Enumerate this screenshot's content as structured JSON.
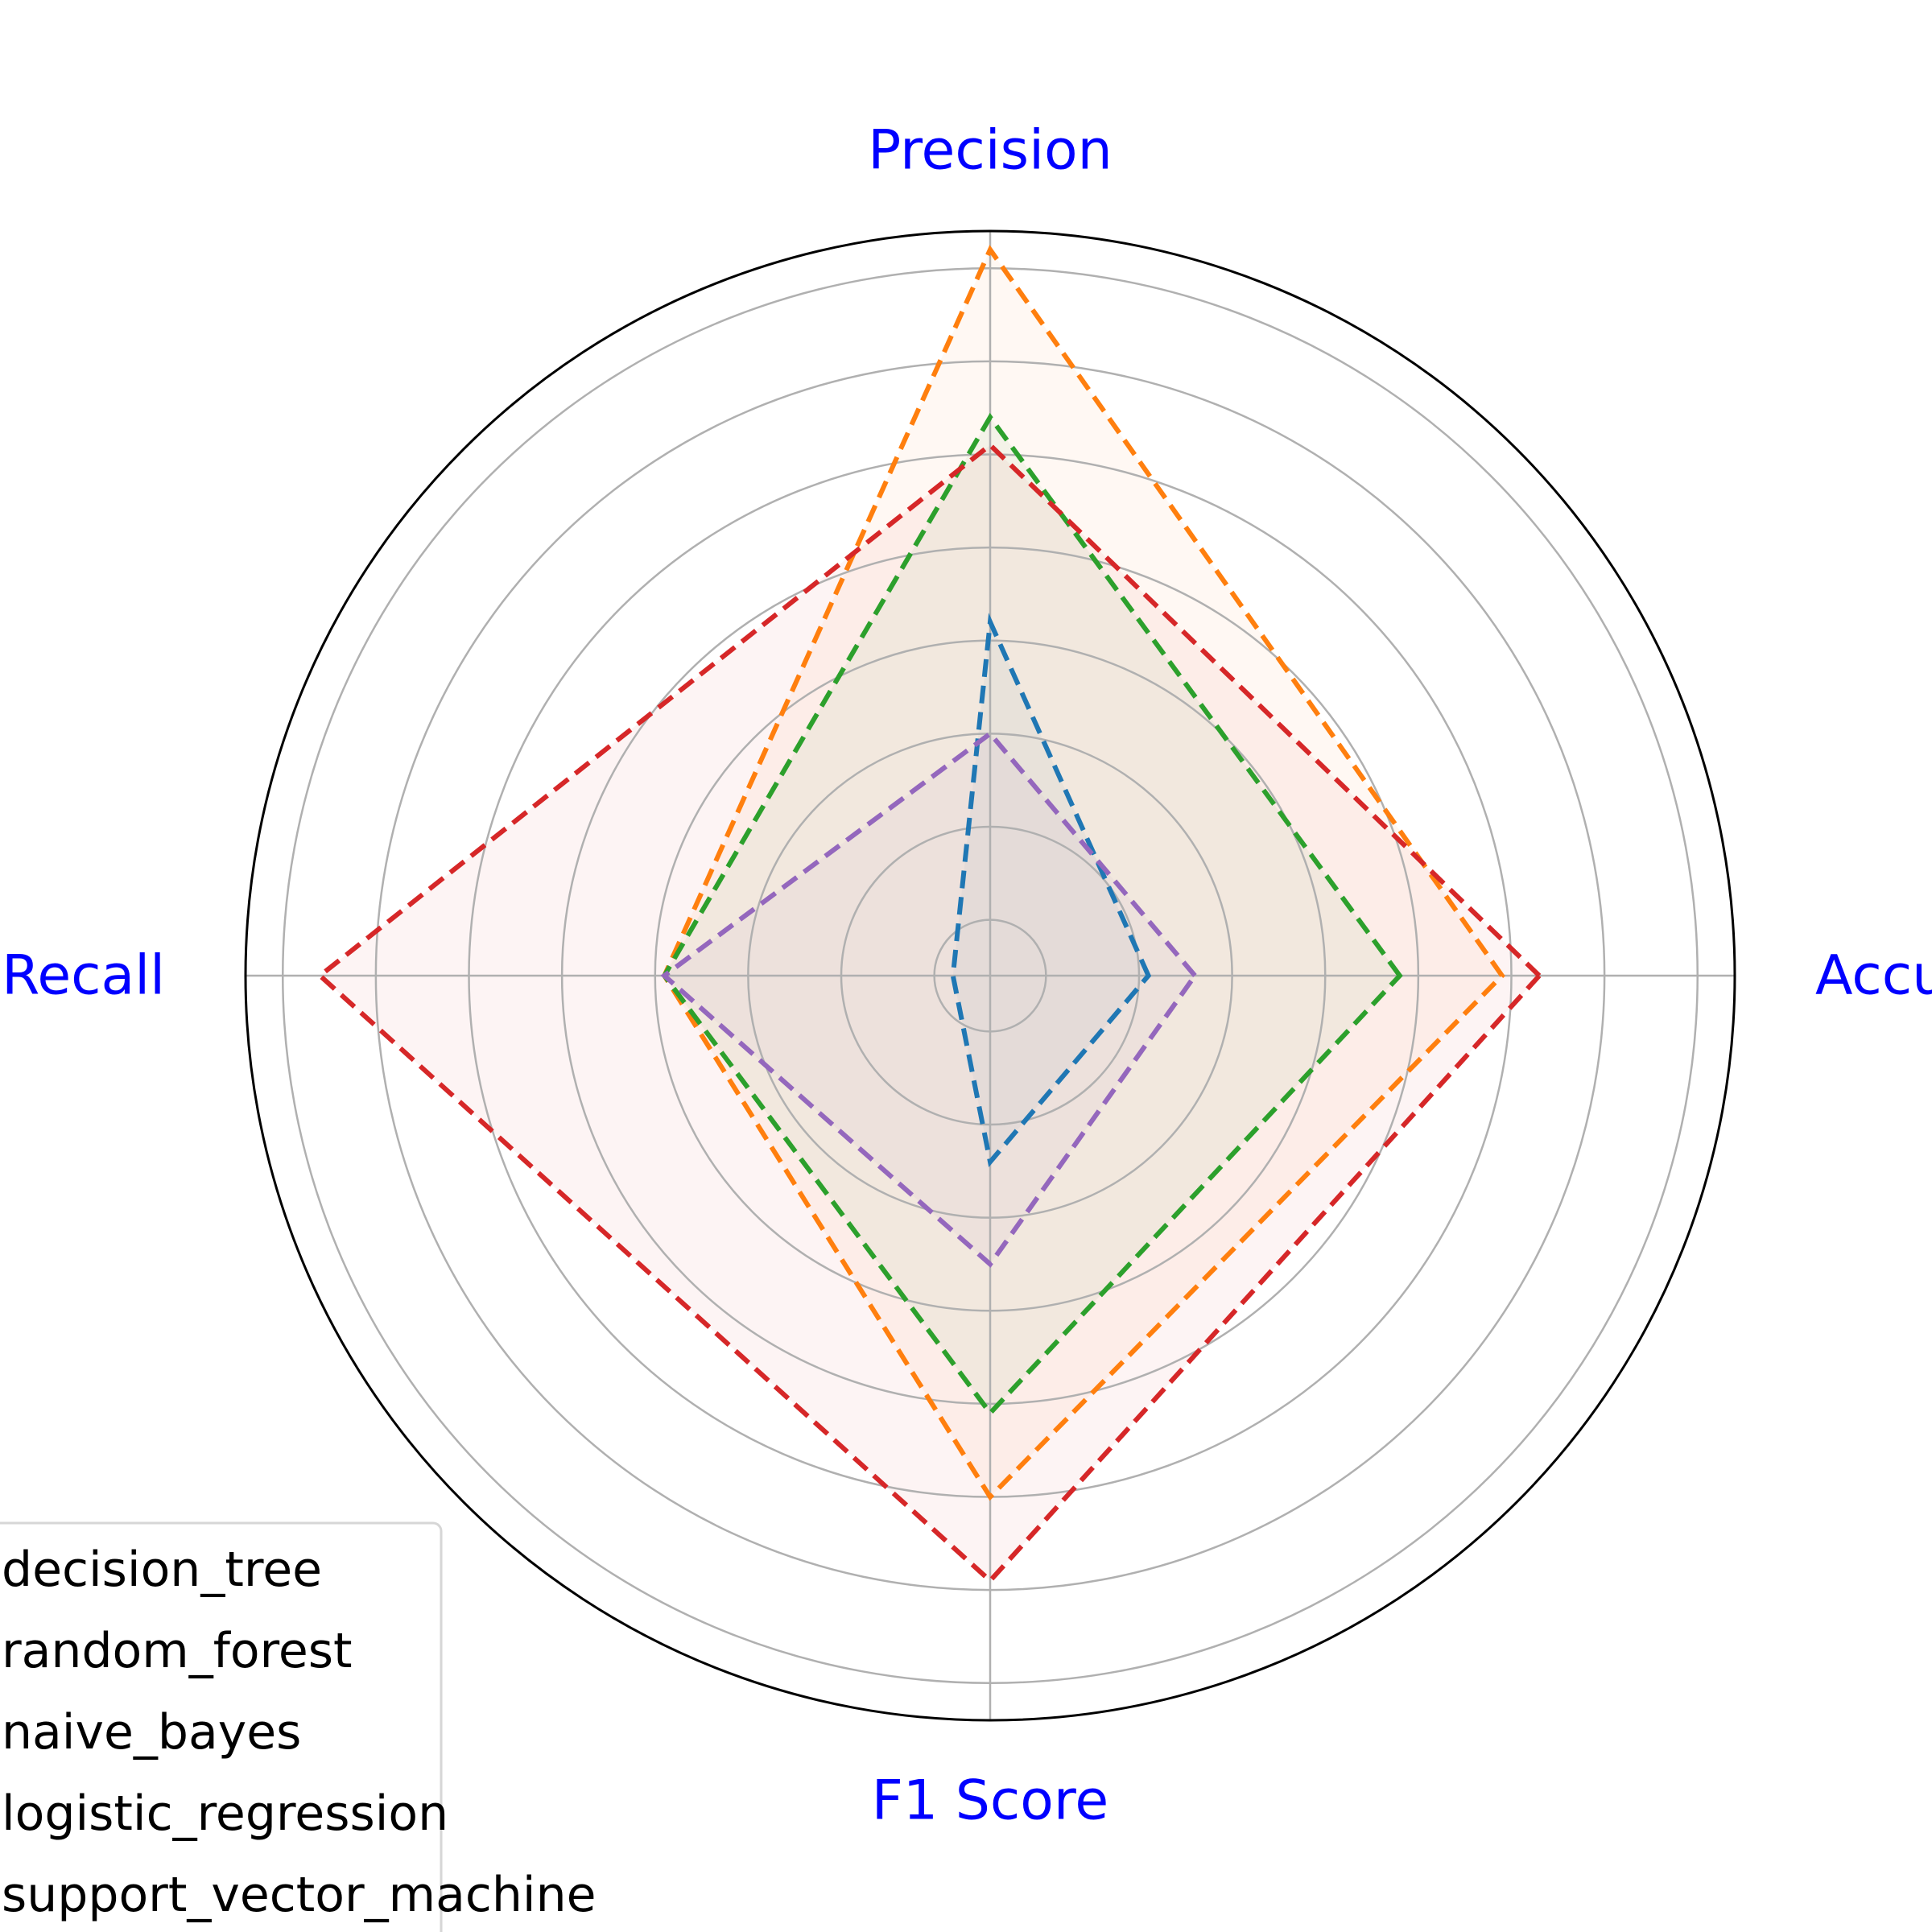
{
  "chart_data": {
    "type": "radar",
    "axes": [
      "Accuracy",
      "Precision",
      "Recall",
      "F1 Score"
    ],
    "rlim": [
      0,
      0.8
    ],
    "rings": [
      0.06,
      0.16,
      0.26,
      0.36,
      0.46,
      0.56,
      0.66,
      0.76
    ],
    "grid": true,
    "legend_position": "bottom-left",
    "series": [
      {
        "name": "decision_tree",
        "color": "#1f77b4",
        "values": [
          0.17,
          0.38,
          0.04,
          0.2
        ]
      },
      {
        "name": "random_forest",
        "color": "#ff7f0e",
        "values": [
          0.55,
          0.78,
          0.35,
          0.56
        ]
      },
      {
        "name": "naive_bayes",
        "color": "#2ca02c",
        "values": [
          0.44,
          0.6,
          0.35,
          0.47
        ]
      },
      {
        "name": "logistic_regression",
        "color": "#d62728",
        "values": [
          0.59,
          0.57,
          0.72,
          0.65
        ]
      },
      {
        "name": "support_vector_machine",
        "color": "#9467bd",
        "values": [
          0.22,
          0.26,
          0.35,
          0.31
        ]
      }
    ]
  }
}
